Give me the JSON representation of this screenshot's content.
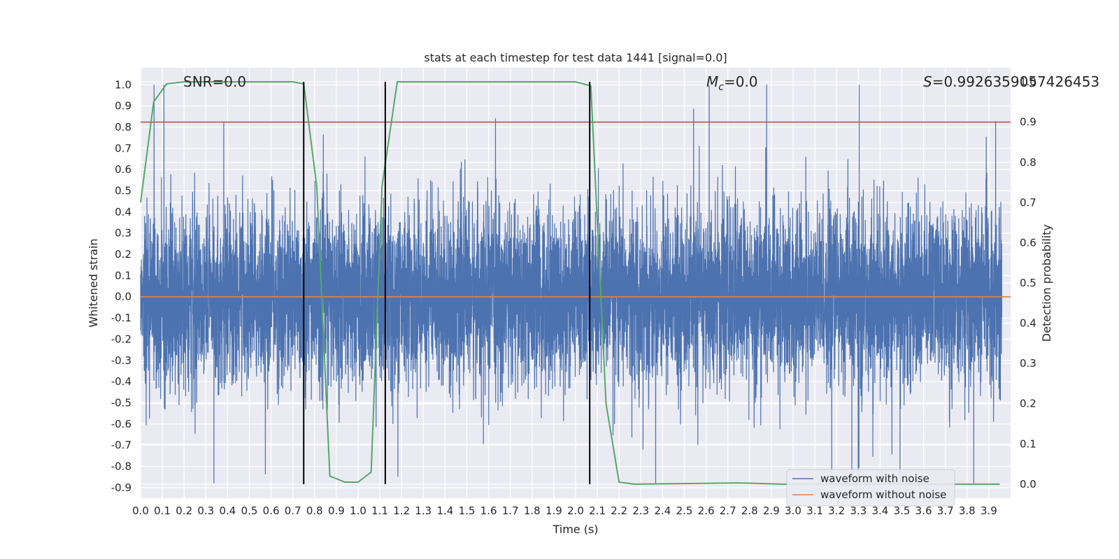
{
  "chart_data": {
    "type": "line",
    "title": "stats at each timestep for test data 1441 [signal=0.0]",
    "xlabel": "Time (s)",
    "ylabel": "Whitened strain",
    "y2label": "Detection probability",
    "xlim": [
      0.0,
      4.0
    ],
    "ylim": [
      -0.95,
      1.08
    ],
    "y2lim": [
      -0.035,
      1.035
    ],
    "x_ticks": [
      "0.0",
      "0.1",
      "0.2",
      "0.3",
      "0.4",
      "0.5",
      "0.6",
      "0.7",
      "0.8",
      "0.9",
      "1.0",
      "1.1",
      "1.2",
      "1.3",
      "1.4",
      "1.5",
      "1.6",
      "1.7",
      "1.8",
      "1.9",
      "2.0",
      "2.1",
      "2.2",
      "2.3",
      "2.4",
      "2.5",
      "2.6",
      "2.7",
      "2.8",
      "2.9",
      "3.0",
      "3.1",
      "3.2",
      "3.3",
      "3.4",
      "3.5",
      "3.6",
      "3.7",
      "3.8",
      "3.9"
    ],
    "y_ticks": [
      "1.0",
      "0.9",
      "0.8",
      "0.7",
      "0.6",
      "0.5",
      "0.4",
      "0.3",
      "0.2",
      "0.1",
      "0.0",
      "-0.1",
      "-0.2",
      "-0.3",
      "-0.4",
      "-0.5",
      "-0.6",
      "-0.7",
      "-0.8",
      "-0.9"
    ],
    "y2_ticks": [
      "1.0",
      "0.9",
      "0.8",
      "0.7",
      "0.6",
      "0.5",
      "0.4",
      "0.3",
      "0.2",
      "0.1",
      "0.0"
    ],
    "annotations": {
      "snr": "SNR=0.0",
      "mc_symbol": "M",
      "mc_sub": "c",
      "mc_value": "=0.0",
      "s_symbol": "S",
      "s_value": "=0.9926359057426453"
    },
    "threshold": 0.9,
    "threshold_color": "#c44e52",
    "event_lines_x": [
      0.75,
      1.125,
      2.065
    ],
    "series": [
      {
        "name": "waveform with noise",
        "color": "#4c72b0",
        "sample_rate": 2048,
        "amplitude_std": 0.2,
        "max_abs": 1.0
      },
      {
        "name": "waveform without noise",
        "color": "#dd8452",
        "value": 0.0
      },
      {
        "name": "detection probability",
        "color": "#55a868",
        "x": [
          0.0,
          0.06,
          0.12,
          0.2,
          0.7,
          0.75,
          0.81,
          0.87,
          0.94,
          1.0,
          1.06,
          1.11,
          1.18,
          1.25,
          2.0,
          2.07,
          2.14,
          2.2,
          2.27,
          2.75,
          2.95,
          3.95
        ],
        "y": [
          0.7,
          0.95,
          0.995,
          1.0,
          1.0,
          0.995,
          0.74,
          0.02,
          0.005,
          0.005,
          0.03,
          0.74,
          1.0,
          1.0,
          1.0,
          0.99,
          0.2,
          0.005,
          0.0,
          0.003,
          0.0,
          0.0
        ]
      }
    ],
    "legend": {
      "position": "lower right",
      "entries": [
        "waveform with noise",
        "waveform without noise"
      ]
    },
    "grid": true
  }
}
